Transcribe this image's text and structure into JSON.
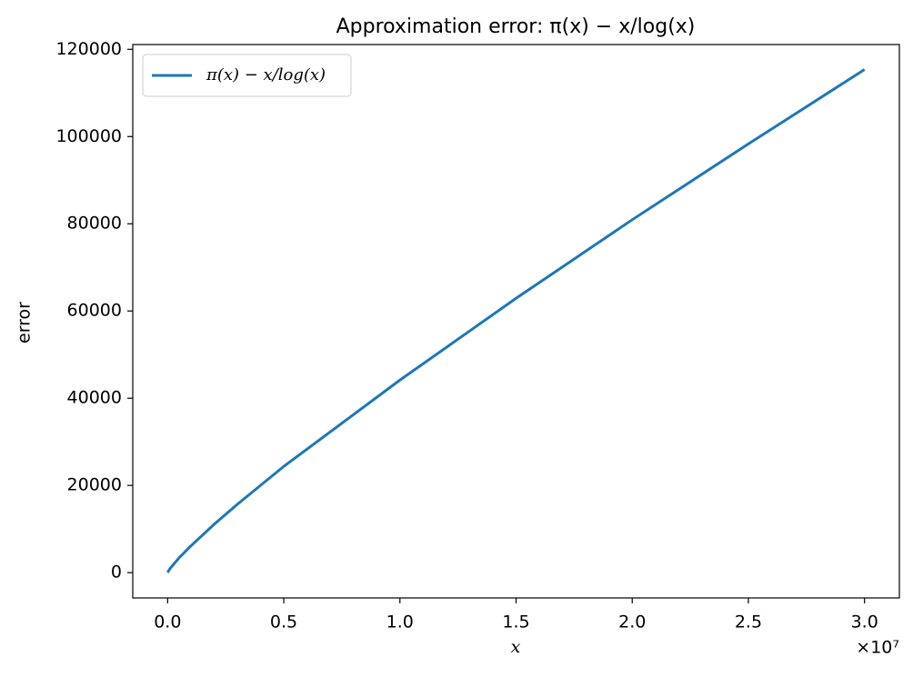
{
  "chart_data": {
    "type": "line",
    "title": "Approximation error: π(x) − x/log(x)",
    "x_label": "x",
    "y_label": "error",
    "x_offset_label": "×10⁷",
    "x": [
      1000,
      100000,
      500000,
      1000000,
      2000000,
      3000000,
      5000000,
      10000000,
      15000000,
      20000000,
      25000000,
      30000000
    ],
    "series": [
      {
        "name": "π(x) − x/log(x)",
        "color": "#1f77b4",
        "values": [
          23,
          906,
          3436,
          6116,
          11085,
          15665,
          24362,
          44158,
          62912,
          80923,
          98308,
          115366
        ]
      }
    ],
    "xlim": [
      -1500000,
      31500000
    ],
    "ylim": [
      -5800,
      121100
    ],
    "xticks": [
      {
        "value": 0,
        "label": "0.0"
      },
      {
        "value": 5000000,
        "label": "0.5"
      },
      {
        "value": 10000000,
        "label": "1.0"
      },
      {
        "value": 15000000,
        "label": "1.5"
      },
      {
        "value": 20000000,
        "label": "2.0"
      },
      {
        "value": 25000000,
        "label": "2.5"
      },
      {
        "value": 30000000,
        "label": "3.0"
      }
    ],
    "yticks": [
      0,
      20000,
      40000,
      60000,
      80000,
      100000,
      120000
    ],
    "legend": "upper-left",
    "grid": false
  }
}
